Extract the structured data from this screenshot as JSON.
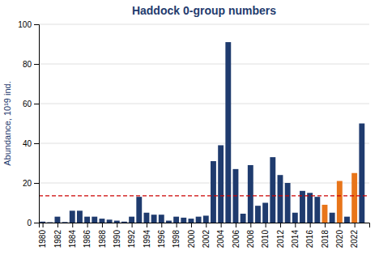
{
  "chart_data": {
    "type": "bar",
    "title": "Haddock 0-group numbers",
    "y_label": "Abundance, 10¹9 ind.",
    "x": [
      1980,
      1981,
      1982,
      1983,
      1984,
      1985,
      1986,
      1987,
      1988,
      1989,
      1990,
      1991,
      1992,
      1993,
      1994,
      1995,
      1996,
      1997,
      1998,
      1999,
      2000,
      2001,
      2002,
      2003,
      2004,
      2005,
      2006,
      2007,
      2008,
      2009,
      2010,
      2011,
      2012,
      2013,
      2014,
      2015,
      2016,
      2017,
      2018,
      2019,
      2020,
      2021,
      2022,
      2023
    ],
    "values": [
      0.5,
      0.2,
      3.0,
      0.3,
      6.0,
      6.0,
      3.0,
      3.0,
      2.0,
      1.5,
      1.0,
      0.5,
      3.0,
      13.0,
      5.0,
      4.0,
      4.0,
      1.0,
      3.0,
      2.5,
      2.0,
      3.0,
      3.5,
      31.0,
      39.0,
      91.0,
      27.0,
      4.5,
      29.0,
      8.5,
      10.0,
      33.0,
      24.0,
      20.0,
      5.0,
      16.0,
      15.0,
      13.0,
      9.0,
      5.0,
      21.0,
      3.0,
      25.0,
      50.0
    ],
    "colors": [
      "#1F3B6E",
      "#1F3B6E",
      "#1F3B6E",
      "#1F3B6E",
      "#1F3B6E",
      "#1F3B6E",
      "#1F3B6E",
      "#1F3B6E",
      "#1F3B6E",
      "#1F3B6E",
      "#1F3B6E",
      "#1F3B6E",
      "#1F3B6E",
      "#1F3B6E",
      "#1F3B6E",
      "#1F3B6E",
      "#1F3B6E",
      "#1F3B6E",
      "#1F3B6E",
      "#1F3B6E",
      "#1F3B6E",
      "#1F3B6E",
      "#1F3B6E",
      "#1F3B6E",
      "#1F3B6E",
      "#1F3B6E",
      "#1F3B6E",
      "#1F3B6E",
      "#1F3B6E",
      "#1F3B6E",
      "#1F3B6E",
      "#1F3B6E",
      "#1F3B6E",
      "#1F3B6E",
      "#1F3B6E",
      "#1F3B6E",
      "#1F3B6E",
      "#1F3B6E",
      "#E8751A",
      "#1F3B6E",
      "#E8751A",
      "#1F3B6E",
      "#E8751A",
      "#1F3B6E"
    ],
    "reference_line": {
      "value": 13.5,
      "color": "#CC0000",
      "line_style": "dashed"
    },
    "xlim": [
      1979.5,
      2024
    ],
    "xticks": [
      1980,
      1982,
      1984,
      1986,
      1988,
      1990,
      1992,
      1994,
      1996,
      1998,
      2000,
      2002,
      2004,
      2006,
      2008,
      2010,
      2012,
      2014,
      2016,
      2018,
      2020,
      2022
    ],
    "ylim": [
      0,
      100
    ],
    "yticks": [
      0,
      20,
      40,
      60,
      80,
      100
    ],
    "grid": true
  }
}
